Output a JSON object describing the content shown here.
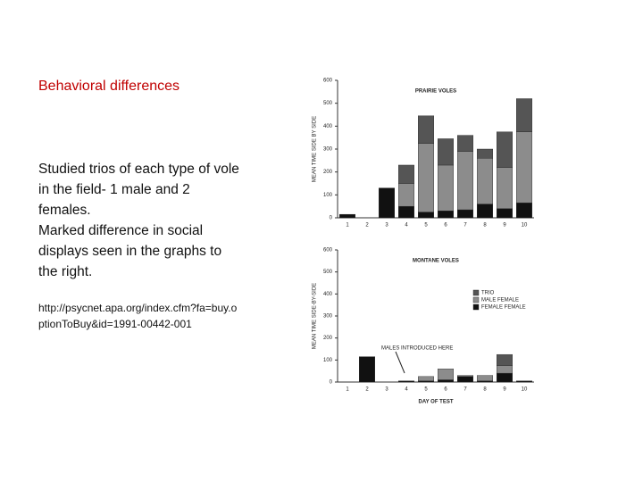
{
  "slide": {
    "title": "Behavioral differences",
    "paragraphs": [
      "Studied trios of each type of vole in the field- 1 male and 2 females.",
      "Marked difference in social displays seen in the graphs to the right."
    ],
    "link": "http://psycnet.apa.org/index.cfm?fa=buy.optionToBuy&id=1991-00442-001"
  },
  "chart_data": [
    {
      "type": "bar",
      "stacked": true,
      "title": "PRAIRIE VOLES",
      "y_label": "MEAN TIME SIDE BY SIDE",
      "categories": [
        "1",
        "2",
        "3",
        "4",
        "5",
        "6",
        "7",
        "8",
        "9",
        "10"
      ],
      "series": [
        {
          "color": "#111111",
          "values": [
            15,
            0,
            130,
            50,
            25,
            30,
            35,
            60,
            40,
            65
          ]
        },
        {
          "color": "#8c8c8c",
          "values": [
            0,
            0,
            0,
            100,
            300,
            200,
            255,
            200,
            180,
            310
          ]
        },
        {
          "color": "#555555",
          "values": [
            0,
            0,
            0,
            80,
            120,
            115,
            70,
            40,
            155,
            145
          ]
        }
      ],
      "ylim": [
        0,
        600
      ],
      "yticks": [
        0,
        100,
        200,
        300,
        400,
        500,
        600
      ],
      "legend": false
    },
    {
      "type": "bar",
      "stacked": true,
      "title": "MONTANE VOLES",
      "y_label": "MEAN TIME SIDE-BY-SIDE",
      "x_label": "DAY OF TEST",
      "annotation": "MALES INTRODUCED HERE",
      "categories": [
        "1",
        "2",
        "3",
        "4",
        "5",
        "6",
        "7",
        "8",
        "9",
        "10"
      ],
      "series": [
        {
          "name": "FEMALE FEMALE",
          "color": "#111111",
          "values": [
            0,
            115,
            0,
            5,
            5,
            10,
            25,
            5,
            40,
            5
          ]
        },
        {
          "name": "MALE FEMALE",
          "color": "#8c8c8c",
          "values": [
            0,
            0,
            0,
            0,
            20,
            50,
            5,
            25,
            35,
            0
          ]
        },
        {
          "name": "TRIO",
          "color": "#555555",
          "values": [
            0,
            0,
            0,
            0,
            0,
            0,
            0,
            0,
            50,
            0
          ]
        }
      ],
      "ylim": [
        0,
        600
      ],
      "yticks": [
        0,
        100,
        200,
        300,
        400,
        500,
        600
      ],
      "legend": "right"
    }
  ]
}
